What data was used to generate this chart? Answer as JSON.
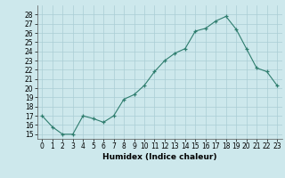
{
  "x": [
    0,
    1,
    2,
    3,
    4,
    5,
    6,
    7,
    8,
    9,
    10,
    11,
    12,
    13,
    14,
    15,
    16,
    17,
    18,
    19,
    20,
    21,
    22,
    23
  ],
  "y": [
    17,
    15.8,
    15,
    15,
    17,
    16.7,
    16.3,
    17,
    18.8,
    19.3,
    20.3,
    21.8,
    23,
    23.8,
    24.3,
    26.2,
    26.5,
    27.3,
    27.8,
    26.4,
    24.3,
    22.2,
    21.8,
    20.3
  ],
  "xlabel": "Humidex (Indice chaleur)",
  "xlim": [
    -0.5,
    23.5
  ],
  "ylim": [
    14.5,
    29
  ],
  "yticks": [
    15,
    16,
    17,
    18,
    19,
    20,
    21,
    22,
    23,
    24,
    25,
    26,
    27,
    28
  ],
  "xticks": [
    0,
    1,
    2,
    3,
    4,
    5,
    6,
    7,
    8,
    9,
    10,
    11,
    12,
    13,
    14,
    15,
    16,
    17,
    18,
    19,
    20,
    21,
    22,
    23
  ],
  "line_color": "#2e7d6e",
  "marker": "+",
  "bg_color": "#cde8ec",
  "grid_color": "#aacdd4",
  "label_fontsize": 6.5,
  "tick_fontsize": 5.5
}
